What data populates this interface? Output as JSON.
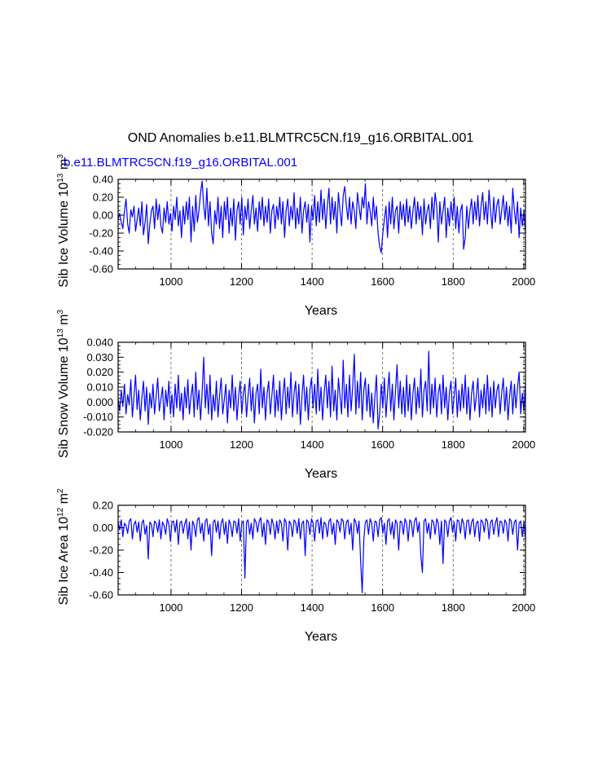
{
  "figure_title": "OND Anomalies b.e11.BLMTRC5CN.f19_g16.ORBITAL.001",
  "series_color": "#0000ff",
  "chart_data": [
    {
      "type": "line",
      "subtitle": "b.e11.BLMTRC5CN.f19_g16.ORBITAL.001",
      "ylabel": "Sib Ice Volume",
      "yunit_base": "10",
      "yunit_exp": "13",
      "yunit_tail": "m",
      "yunit_tail_exp": "3",
      "xlabel": "Years",
      "xlim": [
        850,
        2005
      ],
      "ylim": [
        -0.6,
        0.4
      ],
      "xticks": [
        1000,
        1200,
        1400,
        1600,
        1800,
        2000
      ],
      "xtick_labels": [
        "1000",
        "1200",
        "1400",
        "1600",
        "1800",
        "2000"
      ],
      "yticks": [
        0.4,
        0.2,
        0.0,
        -0.2,
        -0.4,
        -0.6
      ],
      "ytick_labels": [
        "0.40",
        "0.20",
        "0.00",
        "-0.20",
        "-0.40",
        "-0.60"
      ],
      "gridlines_x": [
        1000,
        1200,
        1400,
        1600,
        1800,
        2000
      ],
      "series": [
        {
          "name": "Sib Ice Volume",
          "values": [
            -0.05,
            0.02,
            -0.08,
            -0.15,
            0.05,
            0.18,
            -0.1,
            -0.2,
            0.06,
            -0.02,
            0.1,
            -0.18,
            -0.05,
            0.08,
            -0.12,
            0.15,
            -0.22,
            -0.08,
            0.12,
            -0.32,
            -0.1,
            0.05,
            0.1,
            -0.15,
            0.18,
            -0.05,
            0.12,
            -0.12,
            -0.2,
            0.08,
            -0.08,
            0.15,
            -0.1,
            0.02,
            -0.18,
            0.1,
            -0.05,
            0.2,
            -0.12,
            0.05,
            -0.25,
            0.1,
            -0.1,
            0.15,
            -0.05,
            0.2,
            -0.3,
            0.1,
            -0.18,
            0.22,
            -0.08,
            0.05,
            0.25,
            0.38,
            0.1,
            -0.05,
            0.3,
            -0.12,
            0.15,
            -0.2,
            -0.32,
            0.05,
            -0.1,
            0.2,
            -0.15,
            0.1,
            -0.25,
            0.15,
            -0.05,
            0.2,
            -0.2,
            0.08,
            -0.12,
            0.18,
            -0.28,
            0.05,
            0.15,
            -0.1,
            0.2,
            -0.22,
            0.1,
            -0.05,
            0.18,
            -0.15,
            0.05,
            0.22,
            -0.1,
            0.08,
            -0.18,
            0.15,
            -0.05,
            0.2,
            -0.12,
            0.1,
            -0.08,
            0.18,
            -0.2,
            0.05,
            0.12,
            -0.15,
            0.1,
            -0.05,
            0.2,
            -0.1,
            0.15,
            -0.25,
            0.05,
            0.18,
            -0.12,
            0.1,
            -0.05,
            0.25,
            -0.15,
            0.08,
            -0.1,
            0.2,
            -0.2,
            0.05,
            0.15,
            -0.08,
            0.12,
            -0.3,
            0.1,
            -0.05,
            0.22,
            -0.12,
            0.15,
            -0.08,
            0.28,
            -0.05,
            0.18,
            -0.15,
            0.1,
            0.3,
            -0.1,
            0.2,
            -0.05,
            0.15,
            -0.2,
            0.25,
            0.05,
            -0.12,
            0.22,
            0.32,
            0.1,
            -0.05,
            0.2,
            -0.1,
            0.15,
            0.05,
            -0.15,
            0.25,
            0.1,
            -0.05,
            0.2,
            0.08,
            0.35,
            -0.1,
            0.15,
            0.05,
            -0.12,
            0.2,
            -0.05,
            0.1,
            -0.2,
            -0.35,
            -0.42,
            -0.2,
            -0.05,
            0.1,
            -0.25,
            0.15,
            -0.1,
            0.2,
            -0.15,
            0.05,
            0.1,
            -0.2,
            0.15,
            -0.05,
            0.12,
            -0.12,
            0.18,
            -0.08,
            0.1,
            -0.15,
            0.05,
            0.2,
            -0.1,
            0.15,
            -0.05,
            0.1,
            -0.22,
            0.18,
            -0.1,
            0.05,
            0.12,
            -0.15,
            0.2,
            -0.05,
            0.25,
            0.1,
            -0.3,
            0.15,
            -0.1,
            0.05,
            0.2,
            -0.25,
            0.08,
            -0.12,
            0.15,
            -0.05,
            0.2,
            -0.15,
            0.1,
            -0.2,
            0.05,
            0.12,
            -0.38,
            -0.25,
            0.1,
            -0.15,
            0.05,
            0.18,
            -0.1,
            0.15,
            -0.05,
            0.22,
            -0.12,
            0.1,
            0.25,
            -0.05,
            0.15,
            -0.1,
            0.28,
            0.05,
            -0.15,
            0.2,
            -0.08,
            0.12,
            0.18,
            -0.1,
            0.05,
            0.22,
            -0.05,
            0.15,
            -0.12,
            0.1,
            -0.2,
            0.3,
            0.05,
            -0.1,
            0.15,
            -0.25,
            0.08,
            -0.12,
            0.05,
            -0.2
          ]
        }
      ]
    },
    {
      "type": "line",
      "ylabel": "Sib Snow Volume",
      "yunit_base": "10",
      "yunit_exp": "13",
      "yunit_tail": "m",
      "yunit_tail_exp": "3",
      "xlabel": "Years",
      "xlim": [
        850,
        2005
      ],
      "ylim": [
        -0.02,
        0.04
      ],
      "xticks": [
        1000,
        1200,
        1400,
        1600,
        1800,
        2000
      ],
      "xtick_labels": [
        "1000",
        "1200",
        "1400",
        "1600",
        "1800",
        "2000"
      ],
      "yticks": [
        0.04,
        0.03,
        0.02,
        0.01,
        0.0,
        -0.01,
        -0.02
      ],
      "ytick_labels": [
        "0.040",
        "0.030",
        "0.020",
        "0.010",
        "0.000",
        "-0.010",
        "-0.020"
      ],
      "gridlines_x": [
        1000,
        1200,
        1400,
        1600,
        1800,
        2000
      ],
      "series": [
        {
          "name": "Sib Snow Volume",
          "values": [
            0.002,
            -0.006,
            0.008,
            -0.003,
            0.012,
            -0.008,
            0.005,
            -0.002,
            0.015,
            -0.01,
            0.004,
            0.018,
            -0.005,
            0.008,
            -0.012,
            0.003,
            0.014,
            -0.006,
            0.01,
            -0.015,
            0.006,
            -0.004,
            0.012,
            -0.008,
            0.004,
            0.016,
            -0.006,
            0.002,
            0.01,
            -0.012,
            0.008,
            -0.003,
            0.014,
            -0.008,
            0.005,
            -0.01,
            0.012,
            -0.004,
            0.018,
            -0.006,
            0.006,
            -0.012,
            0.01,
            -0.004,
            0.015,
            -0.008,
            0.004,
            0.012,
            -0.01,
            0.02,
            -0.005,
            0.008,
            -0.012,
            0.006,
            0.03,
            -0.004,
            0.012,
            -0.008,
            0.018,
            -0.012,
            0.005,
            -0.006,
            0.014,
            -0.01,
            0.004,
            0.016,
            -0.008,
            0.002,
            0.012,
            -0.014,
            0.008,
            -0.004,
            0.018,
            -0.006,
            0.01,
            -0.012,
            0.004,
            0.014,
            -0.008,
            0.006,
            0.012,
            -0.01,
            0.004,
            0.016,
            -0.006,
            0.01,
            -0.014,
            0.006,
            0.012,
            -0.008,
            0.022,
            -0.004,
            0.01,
            -0.012,
            0.006,
            0.014,
            -0.008,
            0.004,
            0.018,
            -0.01,
            0.008,
            -0.006,
            0.014,
            -0.012,
            0.005,
            0.016,
            -0.008,
            0.01,
            -0.004,
            0.02,
            -0.01,
            0.006,
            0.014,
            -0.008,
            0.012,
            -0.015,
            0.004,
            0.018,
            -0.006,
            0.01,
            -0.012,
            0.008,
            0.016,
            -0.004,
            0.012,
            -0.008,
            0.022,
            -0.006,
            0.01,
            -0.012,
            0.006,
            0.018,
            -0.004,
            0.014,
            -0.01,
            0.024,
            -0.006,
            0.008,
            -0.012,
            0.016,
            0.004,
            -0.008,
            0.028,
            -0.004,
            0.012,
            -0.01,
            0.018,
            -0.006,
            0.01,
            0.032,
            -0.008,
            0.014,
            -0.004,
            0.02,
            -0.012,
            0.008,
            0.016,
            -0.006,
            0.012,
            -0.01,
            0.006,
            -0.014,
            0.004,
            0.018,
            -0.018,
            -0.008,
            0.012,
            -0.004,
            0.016,
            -0.01,
            0.006,
            0.02,
            -0.006,
            0.012,
            -0.012,
            0.008,
            0.025,
            -0.004,
            0.014,
            -0.008,
            0.01,
            -0.01,
            0.018,
            -0.006,
            0.012,
            -0.012,
            0.006,
            0.016,
            -0.008,
            0.01,
            -0.004,
            0.022,
            -0.01,
            0.008,
            0.014,
            -0.006,
            0.034,
            -0.008,
            0.012,
            -0.004,
            0.016,
            -0.01,
            0.006,
            0.012,
            -0.008,
            0.018,
            -0.004,
            0.01,
            -0.012,
            0.006,
            0.014,
            -0.008,
            0.004,
            0.016,
            -0.01,
            0.008,
            -0.006,
            0.012,
            -0.004,
            0.018,
            -0.008,
            0.01,
            -0.012,
            0.006,
            0.014,
            -0.006,
            0.004,
            0.016,
            -0.01,
            0.008,
            -0.004,
            0.012,
            -0.008,
            0.018,
            -0.006,
            0.01,
            -0.01,
            0.014,
            -0.004,
            0.008,
            0.012,
            -0.008,
            0.006,
            0.016,
            -0.006,
            0.01,
            -0.012,
            0.004,
            0.014,
            -0.008,
            0.012,
            -0.004,
            0.01,
            0.02,
            -0.008,
            0.006,
            -0.006,
            0.012
          ]
        }
      ]
    },
    {
      "type": "line",
      "ylabel": "Sib Ice Area",
      "yunit_base": "10",
      "yunit_exp": "12",
      "yunit_tail": "m",
      "yunit_tail_exp": "2",
      "xlabel": "Years",
      "xlim": [
        850,
        2005
      ],
      "ylim": [
        -0.6,
        0.2
      ],
      "xticks": [
        1000,
        1200,
        1400,
        1600,
        1800,
        2000
      ],
      "xtick_labels": [
        "1000",
        "1200",
        "1400",
        "1600",
        "1800",
        "2000"
      ],
      "yticks": [
        0.2,
        0.0,
        -0.2,
        -0.4,
        -0.6
      ],
      "ytick_labels": [
        "0.20",
        "0.00",
        "-0.20",
        "-0.40",
        "-0.60"
      ],
      "gridlines_x": [
        1000,
        1200,
        1400,
        1600,
        1800,
        2000
      ],
      "series": [
        {
          "name": "Sib Ice Area",
          "values": [
            0.05,
            -0.02,
            0.07,
            -0.08,
            0.04,
            0.02,
            -0.05,
            0.06,
            0.08,
            -0.1,
            0.03,
            0.06,
            -0.04,
            0.05,
            -0.12,
            0.04,
            0.07,
            -0.06,
            0.02,
            -0.28,
            0.05,
            0.03,
            -0.08,
            0.06,
            0.04,
            -0.04,
            0.07,
            -0.1,
            0.05,
            0.02,
            -0.06,
            0.08,
            0.03,
            -0.12,
            0.05,
            0.06,
            -0.04,
            0.07,
            -0.15,
            0.04,
            0.06,
            -0.05,
            0.03,
            0.08,
            -0.1,
            0.05,
            -0.2,
            0.06,
            0.02,
            -0.08,
            0.07,
            0.09,
            -0.05,
            0.04,
            -0.12,
            0.06,
            0.08,
            -0.06,
            0.03,
            -0.25,
            0.05,
            0.07,
            -0.04,
            0.06,
            -0.1,
            0.04,
            0.08,
            -0.06,
            0.05,
            -0.14,
            0.07,
            0.03,
            -0.08,
            0.06,
            0.05,
            -0.05,
            0.08,
            -0.12,
            0.04,
            0.06,
            -0.45,
            0.05,
            0.07,
            -0.06,
            0.04,
            -0.1,
            0.08,
            0.05,
            -0.04,
            0.06,
            0.09,
            -0.08,
            0.04,
            -0.15,
            0.07,
            0.05,
            -0.06,
            0.08,
            0.03,
            -0.1,
            0.06,
            -0.05,
            0.07,
            0.04,
            -0.12,
            0.08,
            0.05,
            -0.2,
            0.06,
            0.03,
            -0.08,
            0.07,
            0.05,
            -0.05,
            0.08,
            -0.1,
            0.04,
            0.06,
            -0.25,
            0.07,
            0.05,
            -0.06,
            0.08,
            0.04,
            -0.12,
            0.06,
            0.07,
            -0.05,
            0.09,
            -0.1,
            0.05,
            0.03,
            -0.08,
            0.06,
            0.08,
            -0.06,
            0.04,
            -0.15,
            0.07,
            0.05,
            -0.04,
            0.08,
            0.06,
            -0.1,
            0.05,
            0.07,
            -0.06,
            0.04,
            -0.2,
            0.08,
            0.05,
            -0.05,
            0.06,
            -0.3,
            -0.58,
            -0.1,
            0.05,
            0.07,
            -0.06,
            0.08,
            0.04,
            -0.12,
            0.06,
            0.05,
            -0.08,
            0.07,
            0.09,
            -0.05,
            0.04,
            -0.15,
            0.06,
            0.08,
            -0.06,
            0.05,
            -0.1,
            0.07,
            0.04,
            -0.2,
            0.06,
            0.05,
            -0.06,
            0.08,
            0.04,
            -0.12,
            0.07,
            0.05,
            -0.08,
            0.06,
            0.09,
            -0.04,
            0.05,
            -0.25,
            -0.4,
            0.06,
            0.08,
            -0.05,
            0.04,
            -0.1,
            0.07,
            0.05,
            -0.06,
            0.08,
            0.04,
            -0.15,
            0.06,
            -0.32,
            0.07,
            0.05,
            -0.08,
            0.06,
            0.09,
            -0.04,
            0.05,
            -0.12,
            0.07,
            0.06,
            -0.05,
            0.08,
            0.04,
            -0.1,
            0.06,
            0.07,
            -0.06,
            0.05,
            0.08,
            -0.08,
            0.04,
            0.06,
            -0.12,
            0.07,
            0.05,
            -0.04,
            0.08,
            0.06,
            -0.1,
            0.05,
            0.07,
            -0.06,
            0.04,
            0.09,
            -0.08,
            0.06,
            0.05,
            -0.05,
            0.07,
            0.04,
            -0.12,
            0.08,
            0.06,
            -0.06,
            0.05,
            0.07,
            -0.2,
            0.04,
            0.06,
            -0.08,
            0.05,
            -0.1
          ]
        }
      ]
    }
  ]
}
